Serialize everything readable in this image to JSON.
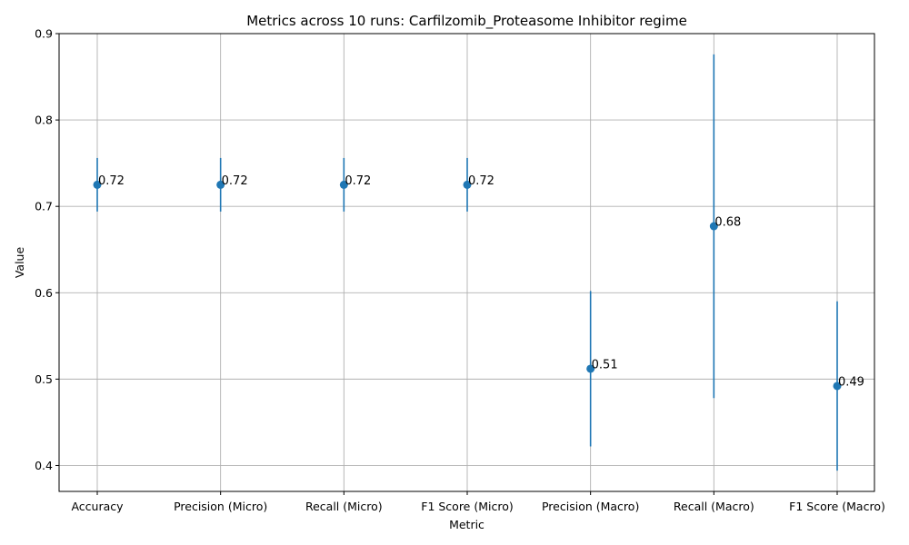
{
  "chart_data": {
    "type": "scatter",
    "title": "Metrics across 10 runs: Carfilzomib_Proteasome Inhibitor regime",
    "xlabel": "Metric",
    "ylabel": "Value",
    "ylim": [
      0.37,
      0.9
    ],
    "yticks": [
      "0.4",
      "0.5",
      "0.6",
      "0.7",
      "0.8",
      "0.9"
    ],
    "grid": true,
    "marker_color": "#1f77b4",
    "categories": [
      "Accuracy",
      "Precision (Micro)",
      "Recall (Micro)",
      "F1 Score (Micro)",
      "Precision (Macro)",
      "Recall (Macro)",
      "F1 Score (Macro)"
    ],
    "series": [
      {
        "values": [
          0.725,
          0.725,
          0.725,
          0.725,
          0.512,
          0.677,
          0.492
        ],
        "error": [
          0.031,
          0.031,
          0.031,
          0.031,
          0.09,
          0.199,
          0.098
        ],
        "labels": [
          "0.72",
          "0.72",
          "0.72",
          "0.72",
          "0.51",
          "0.68",
          "0.49"
        ]
      }
    ]
  }
}
